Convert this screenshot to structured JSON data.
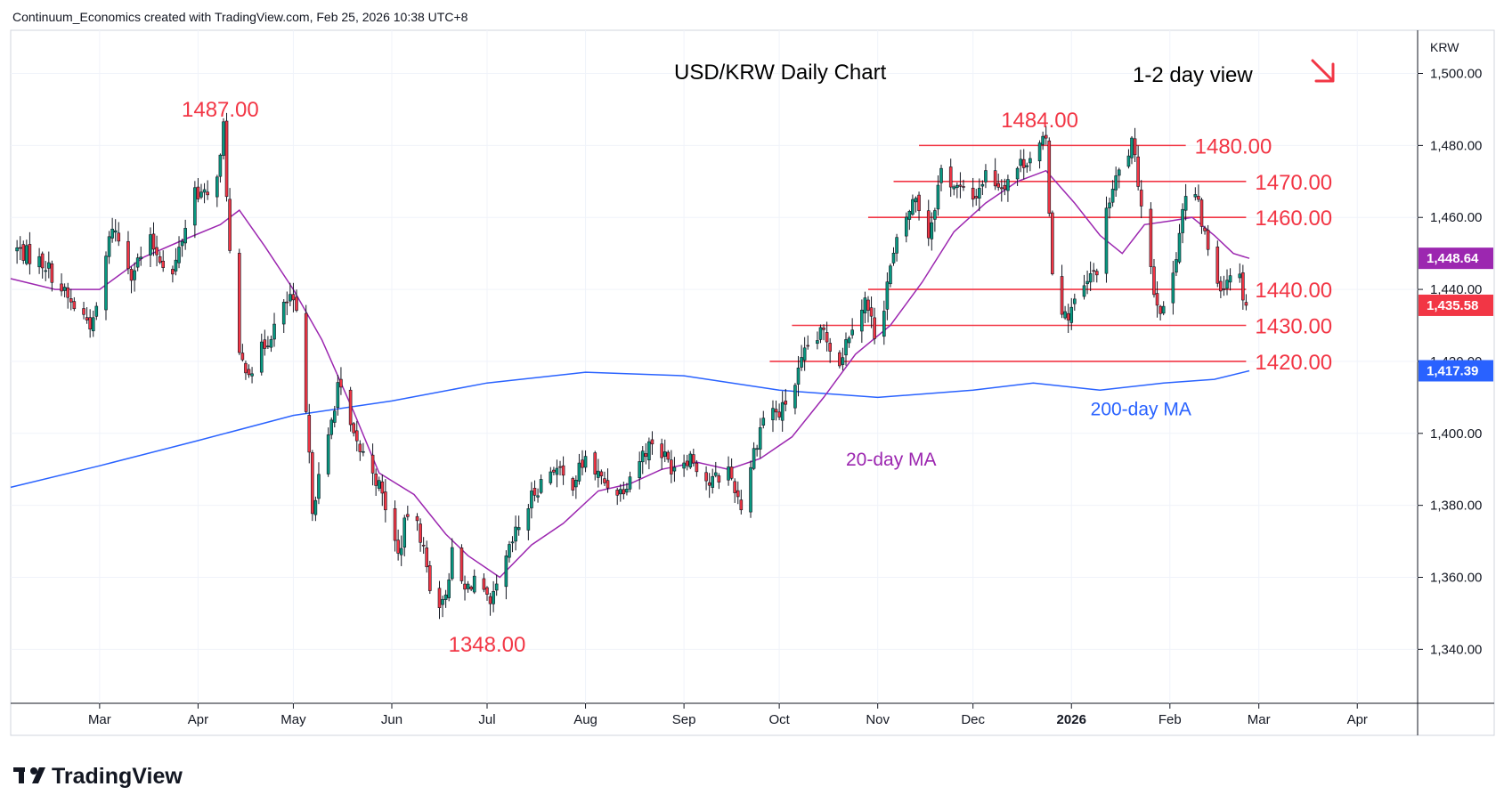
{
  "header": {
    "attribution": "Continuum_Economics created with TradingView.com, Feb 25, 2026 10:38 UTC+8"
  },
  "footer": {
    "brand": "TradingView"
  },
  "colors": {
    "up": "#089981",
    "down": "#f23645",
    "level_line": "#f23645",
    "ma20": "#9c27b0",
    "ma200": "#2962ff",
    "grid": "#f0f3fa"
  },
  "chart_data": {
    "type": "candlestick",
    "title": "USD/KRW Daily Chart",
    "view": "1-2 day view",
    "view_arrow": "down-right-arrow-icon",
    "currency": "KRW",
    "ylim": [
      1325,
      1512
    ],
    "y_ticks": [
      1340,
      1360,
      1380,
      1400,
      1420,
      1440,
      1460,
      1480,
      1500
    ],
    "y_tick_labels": [
      "1,340.00",
      "1,360.00",
      "1,380.00",
      "1,400.00",
      "1,420.00",
      "1,440.00",
      "1,460.00",
      "1,480.00",
      "1,500.00"
    ],
    "x_start": "2025-02-01",
    "x_end": "2026-04-20",
    "months": [
      {
        "label": "Mar",
        "date": "2025-03-01",
        "bold": false
      },
      {
        "label": "Apr",
        "date": "2025-04-01",
        "bold": false
      },
      {
        "label": "May",
        "date": "2025-05-01",
        "bold": false
      },
      {
        "label": "Jun",
        "date": "2025-06-01",
        "bold": false
      },
      {
        "label": "Jul",
        "date": "2025-07-01",
        "bold": false
      },
      {
        "label": "Aug",
        "date": "2025-08-01",
        "bold": false
      },
      {
        "label": "Sep",
        "date": "2025-09-01",
        "bold": false
      },
      {
        "label": "Oct",
        "date": "2025-10-01",
        "bold": false
      },
      {
        "label": "Nov",
        "date": "2025-11-01",
        "bold": false
      },
      {
        "label": "Dec",
        "date": "2025-12-01",
        "bold": false
      },
      {
        "label": "2026",
        "date": "2026-01-01",
        "bold": true
      },
      {
        "label": "Feb",
        "date": "2026-02-01",
        "bold": false
      },
      {
        "label": "Mar",
        "date": "2026-03-01",
        "bold": false
      },
      {
        "label": "Apr",
        "date": "2026-04-01",
        "bold": false
      }
    ],
    "price_path": [
      [
        "2025-02-01",
        1452
      ],
      [
        "2025-02-12",
        1447
      ],
      [
        "2025-02-20",
        1436
      ],
      [
        "2025-02-27",
        1430
      ],
      [
        "2025-03-05",
        1458
      ],
      [
        "2025-03-11",
        1445
      ],
      [
        "2025-03-17",
        1453
      ],
      [
        "2025-03-24",
        1444
      ],
      [
        "2025-03-31",
        1468
      ],
      [
        "2025-04-04",
        1465
      ],
      [
        "2025-04-08",
        1476
      ],
      [
        "2025-04-09",
        1485
      ],
      [
        "2025-04-11",
        1450
      ],
      [
        "2025-04-14",
        1420
      ],
      [
        "2025-04-18",
        1418
      ],
      [
        "2025-04-24",
        1428
      ],
      [
        "2025-04-30",
        1438
      ],
      [
        "2025-05-02",
        1432
      ],
      [
        "2025-05-05",
        1405
      ],
      [
        "2025-05-07",
        1380
      ],
      [
        "2025-05-12",
        1398
      ],
      [
        "2025-05-15",
        1414
      ],
      [
        "2025-05-20",
        1398
      ],
      [
        "2025-05-26",
        1390
      ],
      [
        "2025-05-30",
        1380
      ],
      [
        "2025-06-03",
        1366
      ],
      [
        "2025-06-06",
        1378
      ],
      [
        "2025-06-10",
        1372
      ],
      [
        "2025-06-13",
        1358
      ],
      [
        "2025-06-17",
        1352
      ],
      [
        "2025-06-20",
        1366
      ],
      [
        "2025-06-24",
        1356
      ],
      [
        "2025-06-27",
        1360
      ],
      [
        "2025-07-02",
        1351
      ],
      [
        "2025-07-06",
        1362
      ],
      [
        "2025-07-10",
        1372
      ],
      [
        "2025-07-16",
        1384
      ],
      [
        "2025-07-22",
        1391
      ],
      [
        "2025-07-27",
        1385
      ],
      [
        "2025-08-01",
        1393
      ],
      [
        "2025-08-06",
        1387
      ],
      [
        "2025-08-12",
        1384
      ],
      [
        "2025-08-18",
        1393
      ],
      [
        "2025-08-22",
        1398
      ],
      [
        "2025-08-28",
        1391
      ],
      [
        "2025-09-03",
        1394
      ],
      [
        "2025-09-09",
        1386
      ],
      [
        "2025-09-15",
        1390
      ],
      [
        "2025-09-19",
        1380
      ],
      [
        "2025-09-23",
        1395
      ],
      [
        "2025-09-27",
        1408
      ],
      [
        "2025-10-01",
        1405
      ],
      [
        "2025-10-06",
        1414
      ],
      [
        "2025-10-10",
        1424
      ],
      [
        "2025-10-15",
        1428
      ],
      [
        "2025-10-20",
        1420
      ],
      [
        "2025-10-24",
        1431
      ],
      [
        "2025-10-28",
        1437
      ],
      [
        "2025-11-01",
        1425
      ],
      [
        "2025-11-04",
        1442
      ],
      [
        "2025-11-08",
        1456
      ],
      [
        "2025-11-13",
        1466
      ],
      [
        "2025-11-17",
        1455
      ],
      [
        "2025-11-21",
        1473
      ],
      [
        "2025-11-26",
        1468
      ],
      [
        "2025-12-01",
        1465
      ],
      [
        "2025-12-05",
        1472
      ],
      [
        "2025-12-10",
        1469
      ],
      [
        "2025-12-15",
        1474
      ],
      [
        "2025-12-20",
        1478
      ],
      [
        "2025-12-24",
        1481
      ],
      [
        "2025-12-26",
        1445
      ],
      [
        "2025-12-30",
        1432
      ],
      [
        "2026-01-05",
        1440
      ],
      [
        "2026-01-09",
        1446
      ],
      [
        "2026-01-13",
        1465
      ],
      [
        "2026-01-17",
        1475
      ],
      [
        "2026-01-20",
        1480
      ],
      [
        "2026-01-23",
        1465
      ],
      [
        "2026-01-27",
        1440
      ],
      [
        "2026-01-30",
        1433
      ],
      [
        "2026-02-02",
        1445
      ],
      [
        "2026-02-05",
        1462
      ],
      [
        "2026-02-08",
        1470
      ],
      [
        "2026-02-12",
        1455
      ],
      [
        "2026-02-15",
        1444
      ],
      [
        "2026-02-18",
        1441
      ],
      [
        "2026-02-21",
        1448
      ],
      [
        "2026-02-23",
        1443
      ],
      [
        "2026-02-25",
        1435.58
      ]
    ],
    "ma20_path": [
      [
        "2025-02-01",
        1443
      ],
      [
        "2025-02-15",
        1440
      ],
      [
        "2025-03-01",
        1440
      ],
      [
        "2025-03-15",
        1449
      ],
      [
        "2025-03-28",
        1454
      ],
      [
        "2025-04-08",
        1458
      ],
      [
        "2025-04-14",
        1462
      ],
      [
        "2025-04-22",
        1452
      ],
      [
        "2025-05-01",
        1440
      ],
      [
        "2025-05-10",
        1426
      ],
      [
        "2025-05-20",
        1406
      ],
      [
        "2025-05-28",
        1389
      ],
      [
        "2025-06-08",
        1383
      ],
      [
        "2025-06-18",
        1372
      ],
      [
        "2025-06-25",
        1366
      ],
      [
        "2025-07-05",
        1360
      ],
      [
        "2025-07-15",
        1369
      ],
      [
        "2025-07-25",
        1375
      ],
      [
        "2025-08-05",
        1384
      ],
      [
        "2025-08-15",
        1386
      ],
      [
        "2025-08-25",
        1390
      ],
      [
        "2025-09-05",
        1392
      ],
      [
        "2025-09-15",
        1390
      ],
      [
        "2025-09-25",
        1393
      ],
      [
        "2025-10-05",
        1399
      ],
      [
        "2025-10-15",
        1410
      ],
      [
        "2025-10-25",
        1422
      ],
      [
        "2025-11-05",
        1430
      ],
      [
        "2025-11-15",
        1442
      ],
      [
        "2025-11-25",
        1456
      ],
      [
        "2025-12-05",
        1464
      ],
      [
        "2025-12-15",
        1470
      ],
      [
        "2025-12-24",
        1473
      ],
      [
        "2026-01-02",
        1464
      ],
      [
        "2026-01-10",
        1455
      ],
      [
        "2026-01-17",
        1450
      ],
      [
        "2026-01-24",
        1458
      ],
      [
        "2026-02-01",
        1459
      ],
      [
        "2026-02-08",
        1460
      ],
      [
        "2026-02-15",
        1455
      ],
      [
        "2026-02-21",
        1450
      ],
      [
        "2026-02-26",
        1448.64
      ]
    ],
    "ma200_path": [
      [
        "2025-02-01",
        1385
      ],
      [
        "2025-03-01",
        1391
      ],
      [
        "2025-04-01",
        1398
      ],
      [
        "2025-05-01",
        1405
      ],
      [
        "2025-06-01",
        1409
      ],
      [
        "2025-07-01",
        1414
      ],
      [
        "2025-08-01",
        1417
      ],
      [
        "2025-09-01",
        1416
      ],
      [
        "2025-10-01",
        1412
      ],
      [
        "2025-11-01",
        1410
      ],
      [
        "2025-12-01",
        1412
      ],
      [
        "2025-12-20",
        1414
      ],
      [
        "2026-01-10",
        1412
      ],
      [
        "2026-01-30",
        1414
      ],
      [
        "2026-02-15",
        1415
      ],
      [
        "2026-02-26",
        1417.39
      ]
    ],
    "levels": [
      {
        "value": 1480,
        "label": "1480.00",
        "from": "2025-11-14",
        "to": "2026-02-06"
      },
      {
        "value": 1470,
        "label": "1470.00",
        "from": "2025-11-06",
        "to": "2026-02-25"
      },
      {
        "value": 1460,
        "label": "1460.00",
        "from": "2025-10-29",
        "to": "2026-02-25"
      },
      {
        "value": 1440,
        "label": "1440.00",
        "from": "2025-10-29",
        "to": "2026-02-25"
      },
      {
        "value": 1430,
        "label": "1430.00",
        "from": "2025-10-05",
        "to": "2026-02-25"
      },
      {
        "value": 1420,
        "label": "1420.00",
        "from": "2025-09-28",
        "to": "2026-02-25"
      }
    ],
    "annotations": [
      {
        "text": "1487.00",
        "date": "2025-04-08",
        "value": 1487
      },
      {
        "text": "1484.00",
        "date": "2025-12-22",
        "value": 1484
      },
      {
        "text": "1348.00",
        "date": "2025-07-01",
        "value": 1348
      },
      {
        "text": "20-day MA",
        "date": "2025-10-22",
        "value": 1393
      },
      {
        "text": "200-day MA",
        "date": "2026-01-07",
        "value": 1407
      }
    ],
    "price_tags": [
      {
        "text": "1,448.64",
        "value": 1448.64,
        "color": "#9c27b0"
      },
      {
        "text": "1,435.58",
        "value": 1435.58,
        "color": "#f23645"
      },
      {
        "text": "1,417.39",
        "value": 1417.39,
        "color": "#2962ff"
      }
    ]
  }
}
